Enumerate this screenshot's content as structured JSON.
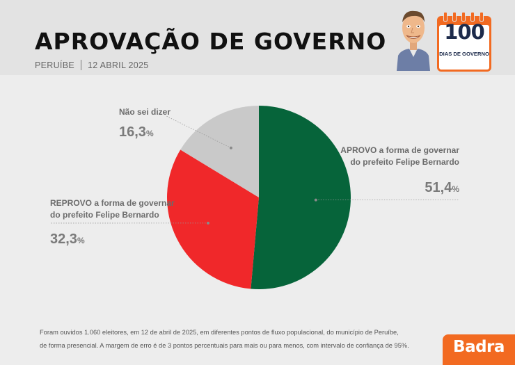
{
  "header": {
    "title": "APROVAÇÃO DE GOVERNO",
    "location": "PERUÍBE",
    "date": "12 ABRIL 2025"
  },
  "badge": {
    "number": "100",
    "label": "DIAS DE GOVERNO"
  },
  "chart_data": {
    "type": "pie",
    "slices": [
      {
        "label_line1": "APROVO a forma de governar",
        "label_line2": "do prefeito Felipe Bernardo",
        "value": 51.4,
        "display": "51,4",
        "color": "#06643a"
      },
      {
        "label_line1": "REPROVO a forma de governar",
        "label_line2": "do prefeito Felipe Bernardo",
        "value": 32.3,
        "display": "32,3",
        "color": "#f0282a"
      },
      {
        "label_line1": "Não sei dizer",
        "label_line2": "",
        "value": 16.3,
        "display": "16,3",
        "color": "#c9c9c9"
      }
    ],
    "unit": "%"
  },
  "footnote": {
    "line1": "Foram ouvidos 1.060 eleitores, em 12 de abril de 2025, em diferentes pontos de fluxo populacional, do município de Peruíbe,",
    "line2": "de forma presencial. A margem de erro é de 3 pontos percentuais para mais ou para menos, com intervalo de confiança de 95%."
  },
  "brand": {
    "logo_text": "Badra",
    "accent": "#f26a21"
  }
}
